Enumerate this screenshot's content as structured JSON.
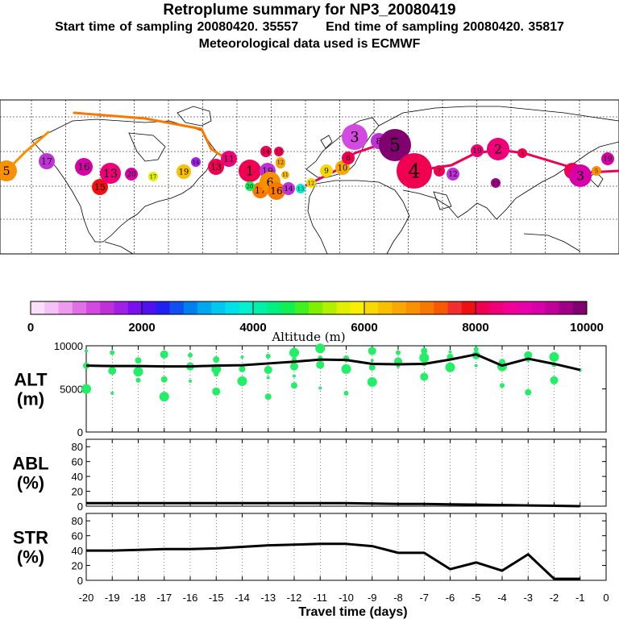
{
  "header": {
    "title": "Retroplume summary for NP3_20080419",
    "start_label": "Start time of sampling 20080420. 35557",
    "end_label": "End time of sampling 20080420. 35817",
    "met_label": "Meteorological data used is ECMWF"
  },
  "colorbar": {
    "ticks": [
      "0",
      "2000",
      "4000",
      "6000",
      "8000",
      "10000"
    ],
    "label": "Altitude (m)",
    "colors": [
      "#fbe0fb",
      "#f5c2f5",
      "#ee9aee",
      "#e070e6",
      "#d24ae0",
      "#c030d8",
      "#a020e8",
      "#7a10f0",
      "#5010f0",
      "#2020f0",
      "#1050f0",
      "#0080f0",
      "#00a8f0",
      "#00c8f0",
      "#00e0e8",
      "#00f0d0",
      "#00f0a8",
      "#00f080",
      "#10f050",
      "#40f020",
      "#80f000",
      "#b0f000",
      "#e0f000",
      "#f8f000",
      "#f8d800",
      "#f8c000",
      "#f8a800",
      "#f89000",
      "#f87800",
      "#f85800",
      "#f03030",
      "#f01010",
      "#f00050",
      "#f00078",
      "#f00098",
      "#e800a8",
      "#d800a8",
      "#c00098",
      "#a00088",
      "#800070"
    ]
  },
  "map": {
    "marker_labels": [
      "5",
      "17",
      "16",
      "15",
      "13",
      "20",
      "17",
      "19",
      "14",
      "13",
      "11",
      "1",
      "19",
      "13",
      "14",
      "13",
      "12",
      "17",
      "6",
      "16",
      "20",
      "14",
      "13",
      "12",
      "11",
      "9",
      "10",
      "6",
      "3",
      "8",
      "5",
      "4",
      "7",
      "12",
      "19",
      "2",
      "3",
      "4",
      "3",
      "5",
      "19",
      "13"
    ]
  },
  "chart_data": [
    {
      "type": "line",
      "title": "ALT (m)",
      "panel_label": [
        "ALT",
        "(m)"
      ],
      "ylim": [
        0,
        10000
      ],
      "yticks": [
        "0",
        "5000",
        "10000"
      ],
      "x": [
        -20,
        -19,
        -18,
        -17,
        -16,
        -15,
        -14,
        -13,
        -12,
        -11,
        -10,
        -9,
        -8,
        -7,
        -6,
        -5,
        -4,
        -3,
        -2,
        -1
      ],
      "series": [
        {
          "name": "mean altitude",
          "color": "#000000",
          "values": [
            7700,
            7650,
            7650,
            7600,
            7600,
            7700,
            7750,
            7950,
            8150,
            8400,
            8350,
            7900,
            7850,
            7900,
            8400,
            9000,
            7700,
            8500,
            7900,
            7200
          ]
        },
        {
          "name": "plume clusters",
          "color": "#22ee66",
          "points": [
            [
              -20,
              9400
            ],
            [
              -20,
              7700
            ],
            [
              -20,
              5000
            ],
            [
              -19,
              9200
            ],
            [
              -19,
              7100
            ],
            [
              -19,
              4500
            ],
            [
              -18,
              8300
            ],
            [
              -18,
              7000
            ],
            [
              -18,
              6000
            ],
            [
              -17,
              9000
            ],
            [
              -17,
              7600
            ],
            [
              -17,
              6100
            ],
            [
              -17,
              4100
            ],
            [
              -16,
              8900
            ],
            [
              -16,
              7600
            ],
            [
              -16,
              5900
            ],
            [
              -15,
              8400
            ],
            [
              -15,
              7300
            ],
            [
              -15,
              6700
            ],
            [
              -15,
              4700
            ],
            [
              -14,
              8700
            ],
            [
              -14,
              7300
            ],
            [
              -14,
              5900
            ],
            [
              -13,
              8800
            ],
            [
              -13,
              7200
            ],
            [
              -13,
              6300
            ],
            [
              -13,
              4100
            ],
            [
              -12,
              9200
            ],
            [
              -12,
              8400
            ],
            [
              -12,
              7600
            ],
            [
              -12,
              6500
            ],
            [
              -12,
              5400
            ],
            [
              -11,
              9700
            ],
            [
              -11,
              8600
            ],
            [
              -11,
              7800
            ],
            [
              -11,
              5100
            ],
            [
              -10,
              8500
            ],
            [
              -10,
              7300
            ],
            [
              -10,
              4500
            ],
            [
              -9,
              9400
            ],
            [
              -9,
              8300
            ],
            [
              -9,
              7500
            ],
            [
              -9,
              5800
            ],
            [
              -8,
              9200
            ],
            [
              -8,
              8200
            ],
            [
              -8,
              7600
            ],
            [
              -7,
              9400
            ],
            [
              -7,
              8600
            ],
            [
              -7,
              7900
            ],
            [
              -7,
              6400
            ],
            [
              -6,
              9300
            ],
            [
              -6,
              8700
            ],
            [
              -6,
              7500
            ],
            [
              -5,
              9600
            ],
            [
              -5,
              8900
            ],
            [
              -5,
              7700
            ],
            [
              -4,
              8100
            ],
            [
              -4,
              7600
            ],
            [
              -4,
              5400
            ],
            [
              -3,
              8900
            ],
            [
              -3,
              8300
            ],
            [
              -3,
              4600
            ],
            [
              -2,
              8700
            ],
            [
              -2,
              7800
            ],
            [
              -2,
              6000
            ],
            [
              -1,
              7200
            ]
          ]
        }
      ]
    },
    {
      "type": "line",
      "title": "ABL (%)",
      "panel_label": [
        "ABL",
        "(%)"
      ],
      "ylim": [
        0,
        90
      ],
      "yticks": [
        "0",
        "20",
        "40",
        "60",
        "80"
      ],
      "x": [
        -20,
        -19,
        -18,
        -17,
        -16,
        -15,
        -14,
        -13,
        -12,
        -11,
        -10,
        -9,
        -8,
        -7,
        -6,
        -5,
        -4,
        -3,
        -2,
        -1
      ],
      "series": [
        {
          "name": "ABL fraction",
          "color": "#000000",
          "values": [
            4,
            4,
            4,
            4,
            4,
            4,
            4,
            4,
            4,
            4,
            4,
            3.5,
            3,
            3,
            2.5,
            2,
            1.5,
            1,
            0.5,
            0
          ]
        }
      ]
    },
    {
      "type": "line",
      "title": "STR (%)",
      "panel_label": [
        "STR",
        "(%)"
      ],
      "ylim": [
        0,
        90
      ],
      "yticks": [
        "0",
        "20",
        "40",
        "60",
        "80"
      ],
      "x": [
        -20,
        -19,
        -18,
        -17,
        -16,
        -15,
        -14,
        -13,
        -12,
        -11,
        -10,
        -9,
        -8,
        -7,
        -6,
        -5,
        -4,
        -3,
        -2,
        -1
      ],
      "series": [
        {
          "name": "stratospheric fraction",
          "color": "#000000",
          "values": [
            40,
            40,
            41,
            42,
            42,
            43,
            45,
            47,
            48,
            49,
            49,
            46,
            37,
            37,
            15,
            24,
            13,
            35,
            2,
            2
          ]
        }
      ]
    }
  ],
  "xaxis": {
    "ticks": [
      "-20",
      "-19",
      "-18",
      "-17",
      "-16",
      "-15",
      "-14",
      "-13",
      "-12",
      "-11",
      "-10",
      "-9",
      "-8",
      "-7",
      "-6",
      "-5",
      "-4",
      "-3",
      "-2",
      "-1",
      "0"
    ],
    "label": "Travel time (days)"
  }
}
